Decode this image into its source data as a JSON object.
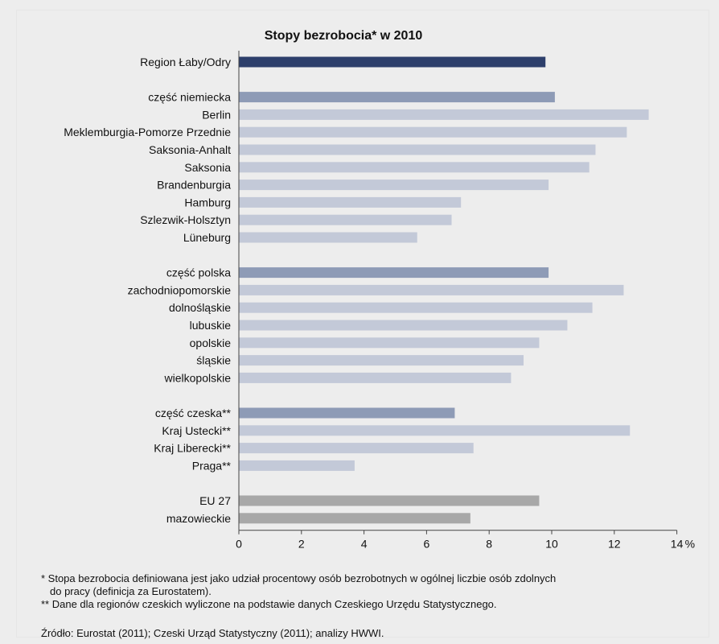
{
  "chart_data": {
    "type": "bar",
    "orientation": "horizontal",
    "title": "Stopy bezrobocia* w 2010",
    "xlabel": "%",
    "xlim": [
      0,
      14
    ],
    "xticks": [
      0,
      2,
      4,
      6,
      8,
      10,
      12,
      14
    ],
    "grid": false,
    "groups": [
      {
        "items": [
          {
            "label": "Region Łaby/Odry",
            "value": 9.8,
            "kind": "total"
          }
        ]
      },
      {
        "items": [
          {
            "label": "część niemiecka",
            "value": 10.1,
            "kind": "aggregate"
          },
          {
            "label": "Berlin",
            "value": 13.1,
            "kind": "region"
          },
          {
            "label": "Meklemburgia-Pomorze Przednie",
            "value": 12.4,
            "kind": "region"
          },
          {
            "label": "Saksonia-Anhalt",
            "value": 11.4,
            "kind": "region"
          },
          {
            "label": "Saksonia",
            "value": 11.2,
            "kind": "region"
          },
          {
            "label": "Brandenburgia",
            "value": 9.9,
            "kind": "region"
          },
          {
            "label": "Hamburg",
            "value": 7.1,
            "kind": "region"
          },
          {
            "label": "Szlezwik-Holsztyn",
            "value": 6.8,
            "kind": "region"
          },
          {
            "label": "Lüneburg",
            "value": 5.7,
            "kind": "region"
          }
        ]
      },
      {
        "items": [
          {
            "label": "część polska",
            "value": 9.9,
            "kind": "aggregate"
          },
          {
            "label": "zachodniopomorskie",
            "value": 12.3,
            "kind": "region"
          },
          {
            "label": "dolnośląskie",
            "value": 11.3,
            "kind": "region"
          },
          {
            "label": "lubuskie",
            "value": 10.5,
            "kind": "region"
          },
          {
            "label": "opolskie",
            "value": 9.6,
            "kind": "region"
          },
          {
            "label": "śląskie",
            "value": 9.1,
            "kind": "region"
          },
          {
            "label": "wielkopolskie",
            "value": 8.7,
            "kind": "region"
          }
        ]
      },
      {
        "items": [
          {
            "label": "część czeska**",
            "value": 6.9,
            "kind": "aggregate"
          },
          {
            "label": "Kraj Ustecki**",
            "value": 12.5,
            "kind": "region"
          },
          {
            "label": "Kraj Liberecki**",
            "value": 7.5,
            "kind": "region"
          },
          {
            "label": "Praga**",
            "value": 3.7,
            "kind": "region"
          }
        ]
      },
      {
        "items": [
          {
            "label": "EU 27",
            "value": 9.6,
            "kind": "reference"
          },
          {
            "label": "mazowieckie",
            "value": 7.4,
            "kind": "reference"
          }
        ]
      }
    ],
    "colors": {
      "total": "#2d3f6b",
      "aggregate": "#8e9bb6",
      "region": "#c3c9d8",
      "reference": "#a8a8a8"
    }
  },
  "notes": {
    "note1_line1": "* Stopa bezrobocia definiowana jest jako udział procentowy osób bezrobotnych w ogólnej liczbie osób zdolnych",
    "note1_line2": "do pracy (definicja za Eurostatem).",
    "note2": "** Dane dla regionów czeskich wyliczone na podstawie danych Czeskiego Urzędu Statystycznego.",
    "source": "Źródło: Eurostat (2011); Czeski Urząd Statystyczny (2011); analizy HWWI."
  }
}
